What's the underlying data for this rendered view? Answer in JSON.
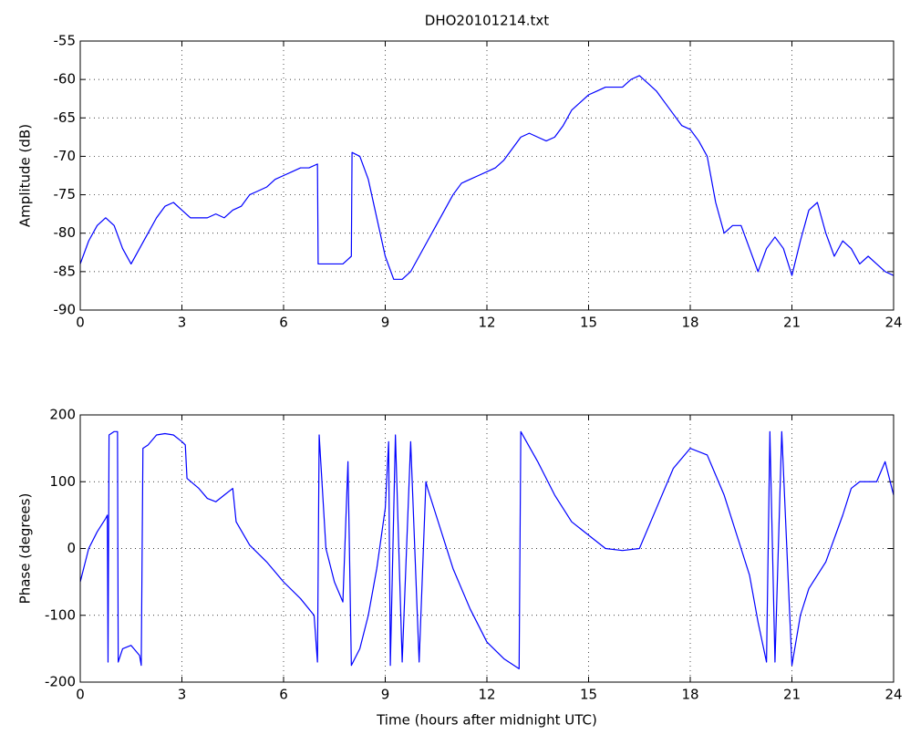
{
  "chart_data": [
    {
      "type": "line",
      "title": "DHO20101214.txt",
      "ylabel": "Amplitude (dB)",
      "color": "#0000ff",
      "grid": true,
      "xlim": [
        0,
        24
      ],
      "xticks": [
        0,
        3,
        6,
        9,
        12,
        15,
        18,
        21,
        24
      ],
      "ylim": [
        -90,
        -55
      ],
      "yticks": [
        -90,
        -85,
        -80,
        -75,
        -70,
        -65,
        -60,
        -55
      ],
      "x": [
        0,
        0.25,
        0.5,
        0.75,
        1,
        1.25,
        1.5,
        1.75,
        2,
        2.25,
        2.5,
        2.75,
        3,
        3.25,
        3.5,
        3.75,
        4,
        4.25,
        4.5,
        4.75,
        5,
        5.25,
        5.5,
        5.75,
        6,
        6.25,
        6.5,
        6.75,
        7,
        7.02,
        7.25,
        7.5,
        7.75,
        8,
        8.02,
        8.25,
        8.5,
        8.75,
        9,
        9.25,
        9.5,
        9.75,
        10,
        10.25,
        10.5,
        10.75,
        11,
        11.25,
        11.5,
        11.75,
        12,
        12.25,
        12.5,
        12.75,
        13,
        13.25,
        13.5,
        13.75,
        14,
        14.25,
        14.5,
        14.75,
        15,
        15.25,
        15.5,
        15.75,
        16,
        16.25,
        16.5,
        16.75,
        17,
        17.25,
        17.5,
        17.75,
        18,
        18.25,
        18.5,
        18.75,
        19,
        19.25,
        19.5,
        19.75,
        20,
        20.25,
        20.5,
        20.75,
        21,
        21.25,
        21.5,
        21.75,
        22,
        22.25,
        22.5,
        22.75,
        23,
        23.25,
        23.5,
        23.75,
        24
      ],
      "values": [
        -84,
        -81,
        -79,
        -78,
        -79,
        -82,
        -84,
        -82,
        -80,
        -78,
        -76.5,
        -76,
        -77,
        -78,
        -78,
        -78,
        -77.5,
        -78,
        -77,
        -76.5,
        -75,
        -74.5,
        -74,
        -73,
        -72.5,
        -72,
        -71.5,
        -71.5,
        -71,
        -84,
        -84,
        -84,
        -84,
        -83,
        -69.5,
        -70,
        -73,
        -78,
        -83,
        -86,
        -86,
        -85,
        -83,
        -81,
        -79,
        -77,
        -75,
        -73.5,
        -73,
        -72.5,
        -72,
        -71.5,
        -70.5,
        -69,
        -67.5,
        -67,
        -67.5,
        -68,
        -67.5,
        -66,
        -64,
        -63,
        -62,
        -61.5,
        -61,
        -61,
        -61,
        -60,
        -59.5,
        -60.5,
        -61.5,
        -63,
        -64.5,
        -66,
        -66.5,
        -68,
        -70,
        -76,
        -80,
        -79,
        -79,
        -82,
        -85,
        -82,
        -80.5,
        -82,
        -85.5,
        -81,
        -77,
        -76,
        -80,
        -83,
        -81,
        -82,
        -84,
        -83,
        -84,
        -85,
        -85.5
      ]
    },
    {
      "type": "line",
      "xlabel": "Time (hours after midnight UTC)",
      "ylabel": "Phase (degrees)",
      "color": "#0000ff",
      "grid": true,
      "xlim": [
        0,
        24
      ],
      "xticks": [
        0,
        3,
        6,
        9,
        12,
        15,
        18,
        21,
        24
      ],
      "ylim": [
        -200,
        200
      ],
      "yticks": [
        -200,
        -100,
        0,
        100,
        200
      ],
      "x": [
        0,
        0.25,
        0.5,
        0.75,
        0.8,
        0.82,
        0.85,
        1,
        1.1,
        1.12,
        1.25,
        1.5,
        1.75,
        1.8,
        1.85,
        2,
        2.25,
        2.5,
        2.75,
        3,
        3.1,
        3.15,
        3.5,
        3.75,
        4,
        4.25,
        4.5,
        4.6,
        5,
        5.5,
        6,
        6.5,
        6.9,
        7,
        7.05,
        7.25,
        7.5,
        7.75,
        7.9,
        8,
        8.25,
        8.5,
        8.75,
        9,
        9.1,
        9.15,
        9.3,
        9.5,
        9.75,
        10,
        10.2,
        10.25,
        10.5,
        10.75,
        11,
        11.5,
        12,
        12.5,
        12.95,
        13,
        13.5,
        14,
        14.5,
        15,
        15.5,
        16,
        16.5,
        17,
        17.5,
        18,
        18.5,
        19,
        19.5,
        19.75,
        20,
        20.25,
        20.35,
        20.5,
        20.7,
        21,
        21.25,
        21.5,
        22,
        22.5,
        22.75,
        23,
        23.5,
        23.75,
        24
      ],
      "values": [
        -50,
        0,
        25,
        45,
        50,
        -170,
        170,
        175,
        175,
        -170,
        -150,
        -145,
        -160,
        -175,
        150,
        155,
        170,
        172,
        170,
        160,
        155,
        105,
        90,
        75,
        70,
        80,
        90,
        40,
        5,
        -20,
        -50,
        -75,
        -100,
        -170,
        170,
        0,
        -50,
        -80,
        130,
        -175,
        -150,
        -100,
        -30,
        60,
        160,
        -175,
        170,
        -170,
        160,
        -170,
        100,
        90,
        50,
        10,
        -30,
        -90,
        -140,
        -165,
        -180,
        175,
        130,
        80,
        40,
        20,
        0,
        -3,
        0,
        60,
        120,
        150,
        140,
        80,
        0,
        -40,
        -110,
        -170,
        175,
        -170,
        175,
        -175,
        -100,
        -60,
        -20,
        50,
        90,
        100,
        100,
        130,
        80
      ]
    }
  ]
}
